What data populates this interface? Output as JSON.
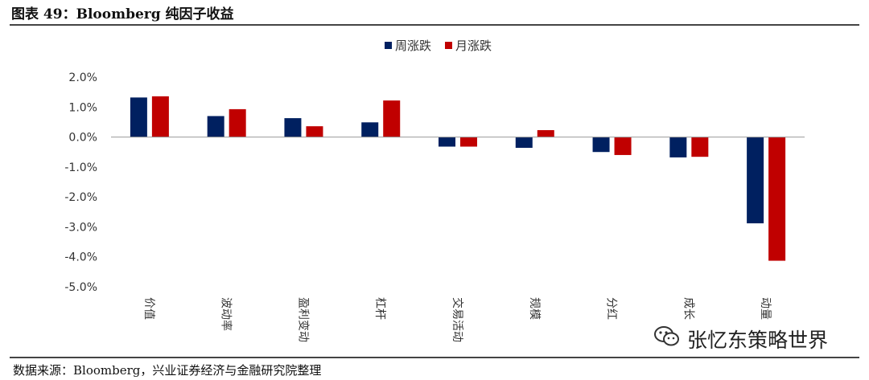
{
  "figure": {
    "title": "图表 49：Bloomberg 纯因子收益",
    "source": "数据来源：Bloomberg，兴业证券经济与金融研究院整理"
  },
  "watermark": {
    "text": "张忆东策略世界",
    "icon": "wechat-icon"
  },
  "chart_data": {
    "type": "bar",
    "title": "",
    "xlabel": "",
    "ylabel": "",
    "categories": [
      "价值",
      "波动率",
      "盈利变动",
      "杠杆",
      "交易活动",
      "规模",
      "分红",
      "成长",
      "动量"
    ],
    "series": [
      {
        "name": "周涨跌",
        "color": "#002060",
        "values": [
          0.0132,
          0.007,
          0.0063,
          0.0049,
          -0.0032,
          -0.0036,
          -0.005,
          -0.0068,
          -0.0288
        ]
      },
      {
        "name": "月涨跌",
        "color": "#C00000",
        "values": [
          0.0136,
          0.0093,
          0.0036,
          0.0122,
          -0.0032,
          0.0023,
          -0.006,
          -0.0066,
          -0.0413
        ]
      }
    ],
    "ylim": [
      -0.05,
      0.02
    ],
    "yticks": [
      "2.0%",
      "1.0%",
      "0.0%",
      "-1.0%",
      "-2.0%",
      "-3.0%",
      "-4.0%",
      "-5.0%"
    ],
    "ytick_values": [
      0.02,
      0.01,
      0.0,
      -0.01,
      -0.02,
      -0.03,
      -0.04,
      -0.05
    ],
    "grid": false,
    "legend": "top-center"
  }
}
